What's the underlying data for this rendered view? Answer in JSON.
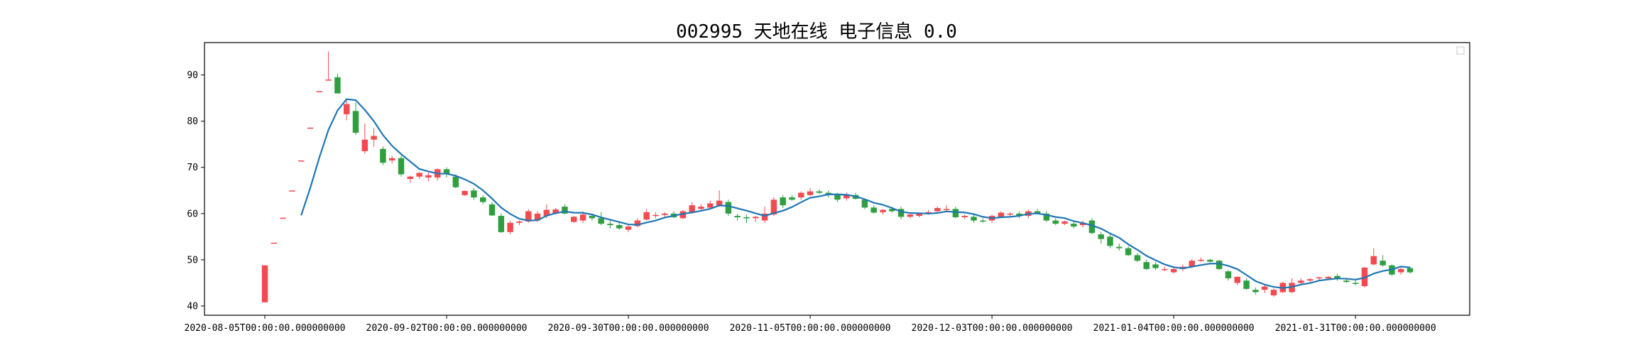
{
  "chart_data": {
    "type": "candlestick",
    "title": "002995 天地在线 电子信息 0.0",
    "xlabel": "",
    "ylabel": "",
    "ylim": [
      38,
      97
    ],
    "yticks": [
      40,
      50,
      60,
      70,
      80,
      90
    ],
    "xticks": [
      "2020-08-05T00:00:00.000000000",
      "2020-09-02T00:00:00.000000000",
      "2020-09-30T00:00:00.000000000",
      "2020-11-05T00:00:00.000000000",
      "2020-12-03T00:00:00.000000000",
      "2021-01-04T00:00:00.000000000",
      "2021-01-31T00:00:00.000000000"
    ],
    "xtick_index": [
      0,
      20,
      40,
      60,
      80,
      100,
      120
    ],
    "legend": "top-right (empty)",
    "up_color": "#f14a4f",
    "down_color": "#2f9e3f",
    "ma_color": "#1f77b4",
    "ma_window": 5,
    "grid": false,
    "ohlc": [
      [
        40.8,
        48.8,
        40.8,
        48.8
      ],
      [
        53.7,
        53.7,
        53.7,
        53.7
      ],
      [
        59.1,
        59.1,
        59.1,
        59.1
      ],
      [
        65.0,
        65.0,
        65.0,
        65.0
      ],
      [
        71.5,
        71.5,
        71.5,
        71.5
      ],
      [
        78.6,
        78.6,
        78.6,
        78.6
      ],
      [
        86.5,
        86.5,
        86.5,
        86.5
      ],
      [
        89.0,
        95.1,
        89.0,
        89.0
      ],
      [
        89.5,
        90.3,
        86.0,
        86.0
      ],
      [
        81.5,
        84.5,
        80.2,
        83.7
      ],
      [
        82.2,
        84.0,
        77.0,
        77.5
      ],
      [
        73.5,
        79.5,
        73.0,
        76.0
      ],
      [
        76.0,
        78.5,
        74.5,
        76.8
      ],
      [
        74.0,
        74.5,
        70.5,
        71.0
      ],
      [
        71.5,
        72.5,
        70.8,
        72.0
      ],
      [
        72.0,
        72.5,
        68.0,
        68.5
      ],
      [
        67.5,
        68.2,
        66.7,
        68.0
      ],
      [
        68.0,
        69.0,
        67.5,
        68.8
      ],
      [
        67.8,
        69.0,
        67.0,
        68.3
      ],
      [
        67.8,
        69.8,
        67.2,
        69.6
      ],
      [
        69.6,
        70.0,
        67.8,
        68.5
      ],
      [
        68.0,
        68.5,
        65.5,
        65.7
      ],
      [
        64.0,
        65.0,
        63.8,
        64.9
      ],
      [
        65.0,
        65.5,
        63.0,
        63.5
      ],
      [
        63.5,
        64.0,
        62.0,
        62.5
      ],
      [
        62.0,
        62.5,
        59.5,
        59.6
      ],
      [
        59.5,
        60.0,
        55.8,
        56.0
      ],
      [
        56.0,
        58.5,
        55.5,
        58.0
      ],
      [
        58.0,
        58.5,
        57.5,
        58.3
      ],
      [
        58.3,
        61.0,
        58.0,
        60.5
      ],
      [
        58.5,
        60.5,
        58.2,
        60.0
      ],
      [
        59.5,
        62.0,
        59.0,
        60.8
      ],
      [
        60.0,
        61.2,
        59.8,
        60.9
      ],
      [
        61.5,
        62.0,
        59.8,
        60.0
      ],
      [
        58.2,
        59.5,
        58.0,
        59.3
      ],
      [
        58.5,
        60.5,
        58.0,
        59.8
      ],
      [
        59.5,
        60.0,
        58.5,
        59.0
      ],
      [
        59.0,
        60.3,
        57.5,
        57.8
      ],
      [
        57.8,
        58.5,
        56.8,
        57.5
      ],
      [
        57.5,
        58.0,
        56.5,
        56.8
      ],
      [
        56.5,
        57.5,
        56.0,
        57.2
      ],
      [
        57.3,
        59.0,
        57.0,
        58.5
      ],
      [
        58.7,
        61.0,
        58.5,
        60.3
      ],
      [
        59.5,
        60.3,
        59.0,
        59.7
      ],
      [
        59.7,
        60.3,
        59.0,
        60.0
      ],
      [
        60.0,
        60.5,
        59.0,
        59.2
      ],
      [
        59.0,
        60.8,
        58.8,
        60.5
      ],
      [
        60.3,
        62.5,
        60.0,
        61.8
      ],
      [
        61.0,
        62.0,
        60.5,
        61.5
      ],
      [
        61.3,
        62.8,
        61.0,
        62.2
      ],
      [
        61.8,
        65.0,
        61.5,
        62.8
      ],
      [
        62.5,
        63.0,
        59.5,
        60.0
      ],
      [
        59.5,
        60.0,
        58.5,
        59.2
      ],
      [
        59.2,
        59.8,
        58.0,
        59.0
      ],
      [
        59.0,
        59.5,
        58.2,
        59.3
      ],
      [
        58.5,
        61.5,
        58.0,
        60.0
      ],
      [
        59.8,
        63.5,
        59.5,
        63.0
      ],
      [
        63.5,
        64.0,
        61.2,
        61.8
      ],
      [
        63.5,
        64.0,
        62.8,
        63.0
      ],
      [
        63.5,
        64.8,
        63.0,
        64.5
      ],
      [
        64.0,
        65.5,
        63.8,
        64.8
      ],
      [
        64.8,
        65.2,
        64.2,
        64.5
      ],
      [
        64.5,
        65.0,
        63.5,
        64.0
      ],
      [
        64.0,
        64.5,
        62.5,
        63.0
      ],
      [
        63.3,
        64.5,
        62.8,
        64.0
      ],
      [
        64.0,
        64.5,
        63.0,
        63.2
      ],
      [
        63.0,
        63.2,
        61.0,
        61.3
      ],
      [
        61.3,
        61.8,
        60.0,
        60.2
      ],
      [
        60.3,
        61.0,
        59.8,
        60.8
      ],
      [
        61.0,
        61.5,
        60.2,
        60.5
      ],
      [
        61.0,
        61.5,
        58.8,
        59.3
      ],
      [
        59.3,
        60.0,
        59.0,
        59.8
      ],
      [
        59.5,
        60.2,
        59.2,
        60.0
      ],
      [
        60.0,
        60.8,
        59.8,
        60.3
      ],
      [
        60.5,
        61.5,
        60.3,
        61.2
      ],
      [
        61.0,
        61.8,
        60.5,
        61.0
      ],
      [
        61.0,
        61.5,
        59.0,
        59.2
      ],
      [
        59.2,
        59.8,
        58.8,
        59.5
      ],
      [
        59.3,
        59.8,
        58.0,
        58.5
      ],
      [
        58.5,
        59.0,
        58.0,
        58.3
      ],
      [
        58.5,
        59.8,
        58.0,
        59.5
      ],
      [
        59.2,
        60.5,
        59.0,
        60.2
      ],
      [
        60.0,
        60.3,
        59.5,
        60.0
      ],
      [
        60.0,
        60.5,
        59.0,
        59.5
      ],
      [
        59.5,
        60.8,
        59.0,
        60.5
      ],
      [
        60.5,
        61.0,
        59.8,
        60.0
      ],
      [
        60.0,
        60.5,
        58.2,
        58.5
      ],
      [
        58.5,
        59.0,
        57.5,
        57.8
      ],
      [
        57.8,
        58.5,
        57.5,
        58.3
      ],
      [
        57.8,
        58.3,
        56.8,
        57.2
      ],
      [
        57.5,
        58.5,
        57.0,
        58.0
      ],
      [
        58.5,
        59.0,
        55.5,
        55.8
      ],
      [
        55.5,
        56.0,
        53.5,
        54.5
      ],
      [
        55.0,
        55.5,
        52.5,
        53.0
      ],
      [
        52.8,
        53.5,
        52.0,
        52.5
      ],
      [
        52.5,
        53.0,
        50.8,
        51.0
      ],
      [
        51.0,
        51.5,
        49.5,
        49.8
      ],
      [
        49.5,
        50.0,
        47.8,
        48.0
      ],
      [
        49.0,
        49.5,
        47.8,
        48.2
      ],
      [
        47.8,
        48.5,
        47.5,
        48.0
      ],
      [
        47.3,
        48.3,
        47.0,
        48.0
      ],
      [
        48.0,
        49.0,
        47.5,
        48.5
      ],
      [
        48.5,
        50.2,
        48.2,
        49.8
      ],
      [
        49.8,
        50.5,
        49.5,
        50.0
      ],
      [
        50.0,
        50.2,
        49.5,
        49.6
      ],
      [
        49.8,
        50.0,
        47.8,
        48.0
      ],
      [
        47.5,
        47.8,
        45.5,
        46.0
      ],
      [
        45.0,
        46.5,
        44.5,
        46.3
      ],
      [
        45.5,
        46.0,
        43.5,
        43.7
      ],
      [
        43.5,
        44.0,
        42.5,
        43.0
      ],
      [
        43.5,
        44.5,
        42.8,
        44.2
      ],
      [
        42.3,
        43.8,
        42.0,
        43.5
      ],
      [
        43.0,
        45.2,
        42.8,
        45.0
      ],
      [
        43.0,
        46.0,
        42.8,
        45.0
      ],
      [
        45.0,
        46.0,
        44.5,
        45.5
      ],
      [
        45.5,
        46.0,
        45.0,
        45.8
      ],
      [
        46.0,
        46.3,
        45.5,
        46.2
      ],
      [
        46.0,
        46.5,
        45.8,
        46.3
      ],
      [
        46.5,
        47.0,
        45.5,
        46.0
      ],
      [
        45.5,
        46.0,
        45.0,
        45.2
      ],
      [
        45.0,
        45.5,
        44.5,
        44.8
      ],
      [
        44.3,
        48.5,
        44.0,
        48.3
      ],
      [
        49.0,
        52.5,
        48.8,
        50.8
      ],
      [
        49.8,
        51.0,
        48.5,
        48.8
      ],
      [
        48.8,
        49.0,
        46.5,
        46.8
      ],
      [
        47.3,
        48.3,
        46.8,
        48.0
      ],
      [
        48.2,
        48.5,
        47.0,
        47.3
      ]
    ]
  }
}
